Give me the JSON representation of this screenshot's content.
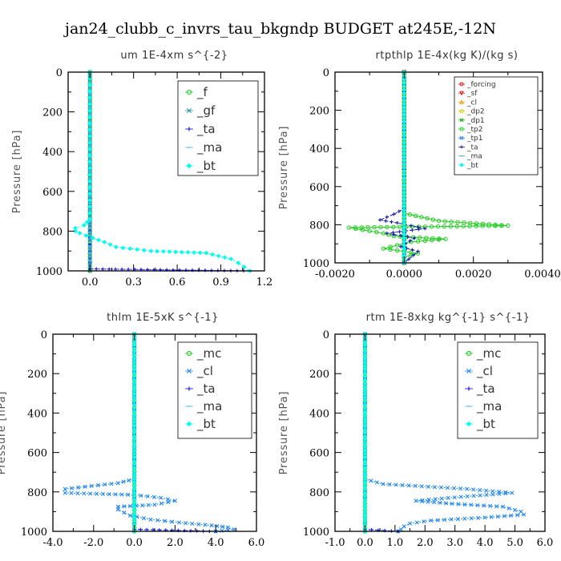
{
  "suptitle": "jan24_clubb_c_invrs_tau_bkgndp  BUDGET at245E,-12N",
  "colors": {
    "green": "#22cc22",
    "teal": "#229999",
    "blue": "#1111ee",
    "lightblue": "#55bbee",
    "cyan": "#00ffee",
    "red": "#ee1111",
    "orange": "#ff9900",
    "yellow": "#cccc00",
    "midblue": "#2288ee",
    "navy": "#1a1aaa",
    "steel": "#55aadd"
  },
  "chart_data": [
    {
      "type": "line",
      "title": "um   1E-4xm s^{-2}",
      "ylabel": "Pressure [hPa]",
      "xlabel": "",
      "xlim": [
        -0.15,
        1.2
      ],
      "ylim": [
        1000,
        0
      ],
      "xticks": [
        0.0,
        0.3,
        0.6,
        0.9,
        1.2
      ],
      "xticklabels": [
        "0.0",
        "0.3",
        "0.6",
        "0.9",
        "1.2"
      ],
      "yticks": [
        0,
        200,
        400,
        600,
        800,
        1000
      ],
      "yticklabels": [
        "0",
        "200",
        "400",
        "600",
        "800",
        "1000"
      ],
      "legend": "top-right",
      "series": [
        {
          "name": "_f",
          "color": "#22cc22",
          "marker": "circle",
          "style": "solid",
          "x": [
            0,
            0
          ],
          "y": [
            0,
            1000
          ]
        },
        {
          "name": "_gf",
          "color": "#229999",
          "marker": "x",
          "style": "dashed",
          "x": [
            0,
            0
          ],
          "y": [
            0,
            1000
          ]
        },
        {
          "name": "_ta",
          "color": "#1111ee",
          "marker": "plus",
          "style": "dotted",
          "x": [
            0,
            0.0,
            0.0,
            0.0,
            1.1
          ],
          "y": [
            0,
            700,
            900,
            990,
            1000
          ]
        },
        {
          "name": "_ma",
          "color": "#55bbee",
          "marker": "dash",
          "style": "dashed",
          "x": [
            0,
            0
          ],
          "y": [
            0,
            1000
          ]
        },
        {
          "name": "_bt",
          "color": "#00ffee",
          "marker": "diamond",
          "style": "dotted",
          "x": [
            0,
            0,
            -0.02,
            -0.04,
            -0.1,
            -0.1,
            -0.07,
            0.02,
            0.1,
            0.18,
            0.42,
            0.8,
            0.97,
            1.02,
            1.06,
            1.1
          ],
          "y": [
            0,
            740,
            755,
            770,
            785,
            800,
            810,
            835,
            855,
            880,
            900,
            910,
            940,
            960,
            980,
            1000
          ]
        }
      ]
    },
    {
      "type": "line",
      "title": "rtpthlp   1E-4x(kg K)/(kg s)",
      "ylabel": "Pressure [hPa]",
      "xlabel": "",
      "xlim": [
        -0.002,
        0.004
      ],
      "ylim": [
        1000,
        0
      ],
      "xticks": [
        -0.002,
        0.0,
        0.002,
        0.004
      ],
      "xticklabels": [
        "-0.0020",
        "0.0000",
        "0.0020",
        "0.0040"
      ],
      "yticks": [
        0,
        200,
        400,
        600,
        800,
        1000
      ],
      "yticklabels": [
        "0",
        "200",
        "400",
        "600",
        "800",
        "1000"
      ],
      "legend": "top-right",
      "series": [
        {
          "name": "_forcing",
          "color": "#ee1111",
          "marker": "circle",
          "style": "solid",
          "x": [
            0,
            0
          ],
          "y": [
            0,
            1000
          ]
        },
        {
          "name": "_sf",
          "color": "#ee1111",
          "marker": "triangle-down",
          "style": "solid",
          "x": [
            0,
            0
          ],
          "y": [
            0,
            1000
          ]
        },
        {
          "name": "_cl",
          "color": "#ff9900",
          "marker": "triangle",
          "style": "solid",
          "x": [
            0,
            0
          ],
          "y": [
            0,
            1000
          ]
        },
        {
          "name": "_dp2",
          "color": "#cccc00",
          "marker": "circle",
          "style": "solid",
          "x": [
            0,
            0
          ],
          "y": [
            0,
            1000
          ]
        },
        {
          "name": "_dp1",
          "color": "#22aa22",
          "marker": "x",
          "style": "solid",
          "x": [
            0,
            0
          ],
          "y": [
            0,
            1000
          ]
        },
        {
          "name": "_tp2",
          "color": "#22cc22",
          "marker": "circle",
          "style": "solid",
          "x": [
            0,
            0,
            0.001,
            0.003,
            -0.0016,
            -0.0006,
            -0.0003,
            0.0012,
            0.0002,
            -0.0006,
            0.0004,
            0.0,
            0.0
          ],
          "y": [
            0,
            740,
            780,
            805,
            815,
            845,
            860,
            875,
            890,
            925,
            950,
            970,
            1000
          ]
        },
        {
          "name": "_tp1",
          "color": "#2288ee",
          "marker": "x",
          "style": "dotted",
          "x": [
            0,
            0,
            0.0,
            0.0
          ],
          "y": [
            0,
            720,
            980,
            1000
          ]
        },
        {
          "name": "_ta",
          "color": "#1a1aaa",
          "marker": "plus",
          "style": "dashed",
          "x": [
            0,
            0,
            -0.0003,
            -0.0007,
            -0.0002,
            0.0006,
            -0.0005,
            0.0003,
            -0.0001,
            0.0004,
            0.0
          ],
          "y": [
            0,
            715,
            745,
            775,
            790,
            820,
            845,
            870,
            915,
            940,
            1000
          ]
        },
        {
          "name": "_ma",
          "color": "#55aadd",
          "marker": "dash",
          "style": "dashed",
          "x": [
            0,
            0
          ],
          "y": [
            0,
            1000
          ]
        },
        {
          "name": "_bt",
          "color": "#00ffee",
          "marker": "diamond",
          "style": "dotted",
          "x": [
            0,
            0
          ],
          "y": [
            0,
            1000
          ]
        }
      ]
    },
    {
      "type": "line",
      "title": "thlm   1E-5xK s^{-1}",
      "ylabel": "Pressure [hPa]",
      "xlabel": "",
      "xlim": [
        -4.0,
        6.0
      ],
      "ylim": [
        1000,
        0
      ],
      "xticks": [
        -4.0,
        -2.0,
        0.0,
        2.0,
        4.0,
        6.0
      ],
      "xticklabels": [
        "-4.0",
        "-2.0",
        "0.0",
        "2.0",
        "4.0",
        "6.0"
      ],
      "yticks": [
        0,
        200,
        400,
        600,
        800,
        1000
      ],
      "yticklabels": [
        "0",
        "200",
        "400",
        "600",
        "800",
        "1000"
      ],
      "legend": "top-right",
      "series": [
        {
          "name": "_mc",
          "color": "#22cc22",
          "marker": "circle",
          "style": "solid",
          "x": [
            0,
            0
          ],
          "y": [
            0,
            1000
          ]
        },
        {
          "name": "_cl",
          "color": "#2288ee",
          "marker": "x",
          "style": "dotted",
          "x": [
            0,
            0,
            -0.8,
            -3.4,
            -3.4,
            0.0,
            1.3,
            2.0,
            1.0,
            -0.8,
            -0.8,
            -0.2,
            0.8,
            2.2,
            3.8,
            4.6,
            4.9,
            4.0
          ],
          "y": [
            0,
            735,
            755,
            785,
            805,
            815,
            830,
            845,
            865,
            875,
            890,
            920,
            940,
            955,
            970,
            980,
            990,
            1000
          ]
        },
        {
          "name": "_ta",
          "color": "#1111ee",
          "marker": "plus",
          "style": "dotted",
          "x": [
            0,
            0,
            0.0,
            4.0
          ],
          "y": [
            0,
            700,
            990,
            1000
          ]
        },
        {
          "name": "_ma",
          "color": "#55bbee",
          "marker": "dash",
          "style": "dashed",
          "x": [
            0,
            0
          ],
          "y": [
            0,
            1000
          ]
        },
        {
          "name": "_bt",
          "color": "#00ffee",
          "marker": "diamond",
          "style": "dotted",
          "x": [
            0,
            0
          ],
          "y": [
            0,
            1000
          ]
        }
      ]
    },
    {
      "type": "line",
      "title": "rtm   1E-8xkg kg^{-1} s^{-1}",
      "ylabel": "Pressure [hPa]",
      "xlabel": "",
      "xlim": [
        -1.0,
        6.0
      ],
      "ylim": [
        1000,
        0
      ],
      "xticks": [
        -1.0,
        0.0,
        1.0,
        2.0,
        3.0,
        4.0,
        5.0,
        6.0
      ],
      "xticklabels": [
        "-1.0",
        "0.0",
        "1.0",
        "2.0",
        "3.0",
        "4.0",
        "5.0",
        "6.0"
      ],
      "yticks": [
        0,
        200,
        400,
        600,
        800,
        1000
      ],
      "yticklabels": [
        "0",
        "200",
        "400",
        "600",
        "800",
        "1000"
      ],
      "legend": "top-right",
      "series": [
        {
          "name": "_mc",
          "color": "#22cc22",
          "marker": "circle",
          "style": "solid",
          "x": [
            0,
            0
          ],
          "y": [
            0,
            1000
          ]
        },
        {
          "name": "_cl",
          "color": "#2288ee",
          "marker": "x",
          "style": "dotted",
          "x": [
            0,
            0,
            0.6,
            3.4,
            4.9,
            3.2,
            1.7,
            2.9,
            4.6,
            5.2,
            5.3,
            4.0,
            2.2,
            1.5,
            1.3,
            1.2,
            1.1
          ],
          "y": [
            0,
            735,
            760,
            785,
            805,
            825,
            845,
            860,
            875,
            900,
            915,
            930,
            945,
            960,
            975,
            990,
            1000
          ]
        },
        {
          "name": "_ta",
          "color": "#1111ee",
          "marker": "plus",
          "style": "dotted",
          "x": [
            0,
            0,
            0.0,
            1.1
          ],
          "y": [
            0,
            700,
            990,
            1000
          ]
        },
        {
          "name": "_ma",
          "color": "#55bbee",
          "marker": "dash",
          "style": "dashed",
          "x": [
            0,
            0
          ],
          "y": [
            0,
            1000
          ]
        },
        {
          "name": "_bt",
          "color": "#00ffee",
          "marker": "diamond",
          "style": "dotted",
          "x": [
            0,
            0
          ],
          "y": [
            0,
            1000
          ]
        }
      ]
    }
  ]
}
